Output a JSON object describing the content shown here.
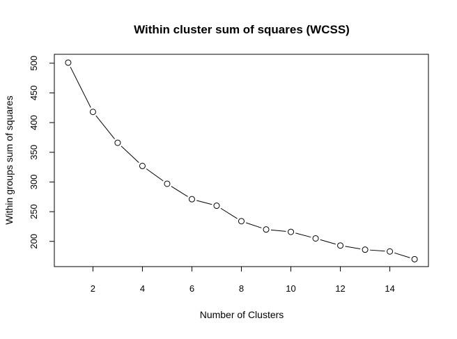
{
  "chart_data": {
    "type": "line",
    "title": "Within cluster sum of squares (WCSS)",
    "xlabel": "Number of Clusters",
    "ylabel": "Within groups sum of squares",
    "x": [
      1,
      2,
      3,
      4,
      5,
      6,
      7,
      8,
      9,
      10,
      11,
      12,
      13,
      14,
      15
    ],
    "values": [
      501,
      418,
      366,
      327,
      297,
      271,
      260,
      234,
      220,
      216,
      205,
      193,
      186,
      183,
      170
    ],
    "xlim": [
      0.44,
      15.56
    ],
    "ylim": [
      157.5,
      515
    ],
    "xticks": [
      2,
      4,
      6,
      8,
      10,
      12,
      14
    ],
    "xtick_labels": [
      "2",
      "4",
      "6",
      "8",
      "10",
      "12",
      "14"
    ],
    "yticks": [
      200,
      250,
      300,
      350,
      400,
      450,
      500
    ],
    "ytick_labels": [
      "200",
      "250",
      "300",
      "350",
      "400",
      "450",
      "500"
    ],
    "marker": "open-circle",
    "grid": false,
    "line_color": "#000000"
  }
}
